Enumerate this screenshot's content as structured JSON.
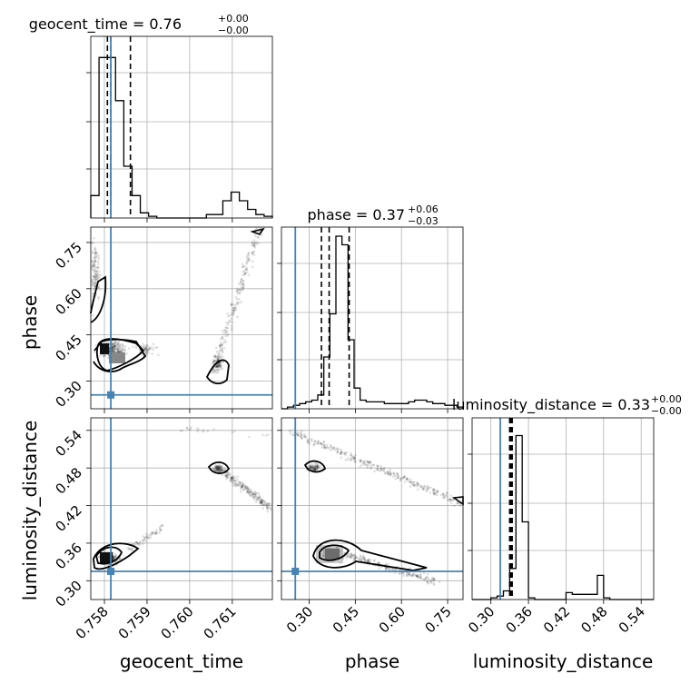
{
  "chart_data": {
    "type": "corner",
    "parameters": [
      {
        "name": "geocent_time",
        "ticks": [
          "0.758",
          "0.759",
          "0.760",
          "0.761"
        ],
        "range": [
          0.75768,
          0.76194
        ],
        "truth": 0.75815
      },
      {
        "name": "phase",
        "ticks": [
          "0.30",
          "0.45",
          "0.60",
          "0.75"
        ],
        "range": [
          0.21,
          0.8
        ],
        "truth": 0.255
      },
      {
        "name": "luminosity_distance",
        "ticks": [
          "0.30",
          "0.36",
          "0.42",
          "0.48",
          "0.54"
        ],
        "range": [
          0.27,
          0.56
        ],
        "truth": 0.315
      }
    ],
    "titles": [
      {
        "param": "geocent_time",
        "median": "0.76",
        "plus": "+0.00",
        "minus": "−0.00"
      },
      {
        "param": "phase",
        "median": "0.37",
        "plus": "+0.06",
        "minus": "−0.03"
      },
      {
        "param": "luminosity_distance",
        "median": "0.33",
        "plus": "+0.00",
        "minus": "−0.00"
      }
    ],
    "quantiles": {
      "geocent_time": [
        0.75807,
        0.75815,
        0.75861
      ],
      "phase": [
        0.34,
        0.365,
        0.43
      ],
      "luminosity_distance": [
        0.33,
        0.332,
        0.334
      ]
    },
    "histograms": {
      "geocent_time": {
        "edges_range": [
          0.75768,
          0.76194
        ],
        "counts": [
          0.13,
          0.93,
          0.93,
          0.68,
          0.3,
          0.13,
          0.03,
          0.01,
          0,
          0,
          0,
          0,
          0,
          0,
          0.02,
          0.02,
          0.1,
          0.15,
          0.1,
          0.05,
          0.02,
          0.01
        ]
      },
      "phase": {
        "edges_range": [
          0.21,
          0.8
        ],
        "counts": [
          0,
          0.01,
          0.02,
          0.03,
          0.04,
          0.05,
          0.08,
          0.3,
          0.55,
          1.0,
          0.95,
          0.4,
          0.12,
          0.05,
          0.04,
          0.04,
          0.04,
          0.03,
          0.03,
          0.03,
          0.03,
          0.04,
          0.05,
          0.05,
          0.04,
          0.03,
          0.03,
          0.02,
          0.02,
          0.01
        ]
      },
      "luminosity_distance": {
        "edges_range": [
          0.27,
          0.56
        ],
        "counts": [
          0,
          0,
          0,
          0.01,
          0.02,
          0.05,
          0.18,
          0.95,
          0.45,
          0.01,
          0,
          0,
          0,
          0,
          0,
          0.04,
          0.03,
          0.03,
          0.03,
          0.03,
          0.14,
          0.01,
          0,
          0,
          0,
          0,
          0,
          0,
          0
        ]
      }
    },
    "grid": true,
    "truth_color": "#4682b4"
  }
}
